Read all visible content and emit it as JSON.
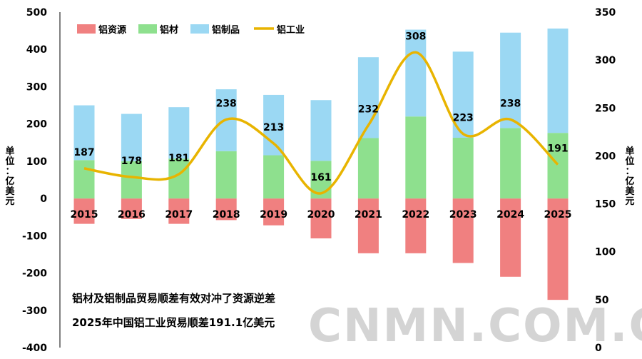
{
  "chart_data": {
    "type": "bar",
    "categories": [
      "2015",
      "2016",
      "2017",
      "2018",
      "2019",
      "2020",
      "2021",
      "2022",
      "2023",
      "2024",
      "2025"
    ],
    "series": [
      {
        "name": "铝资源",
        "type": "bar",
        "axis": "left",
        "color": "#f08080",
        "values": [
          -68,
          -55,
          -68,
          -58,
          -72,
          -107,
          -147,
          -147,
          -173,
          -210,
          -272
        ]
      },
      {
        "name": "铝材",
        "type": "bar",
        "axis": "left",
        "color": "#8ee08e",
        "values": [
          103,
          100,
          107,
          127,
          116,
          101,
          162,
          220,
          163,
          189,
          176
        ]
      },
      {
        "name": "铝制品",
        "type": "bar",
        "axis": "left",
        "color": "#9bd8f3",
        "values": [
          147,
          127,
          138,
          166,
          162,
          163,
          217,
          233,
          231,
          256,
          280
        ]
      },
      {
        "name": "铝工业",
        "type": "line",
        "axis": "right",
        "color": "#e8b400",
        "values": [
          187,
          178,
          181,
          238,
          213,
          161,
          232,
          308,
          223,
          238,
          191
        ]
      }
    ],
    "data_labels": [
      "187",
      "178",
      "181",
      "238",
      "213",
      "161",
      "232",
      "308",
      "223",
      "238",
      "191"
    ],
    "ylim_left": [
      -400,
      500
    ],
    "ylim_right": [
      0,
      350
    ],
    "yticks_left": [
      "500",
      "400",
      "300",
      "200",
      "100",
      "0",
      "-100",
      "-200",
      "-300",
      "-400"
    ],
    "yticks_right": [
      "350",
      "300",
      "250",
      "200",
      "150",
      "100",
      "50",
      "0"
    ],
    "ylabel_left": "单位：亿美元",
    "ylabel_right": "单位：亿美元",
    "legend_position": "top-left",
    "grid": false
  },
  "annotations": [
    "铝材及铝制品贸易顺差有效对冲了资源逆差",
    "2025年中国铝工业贸易顺差191.1亿美元"
  ],
  "watermark": "CNMN.COM.CN"
}
